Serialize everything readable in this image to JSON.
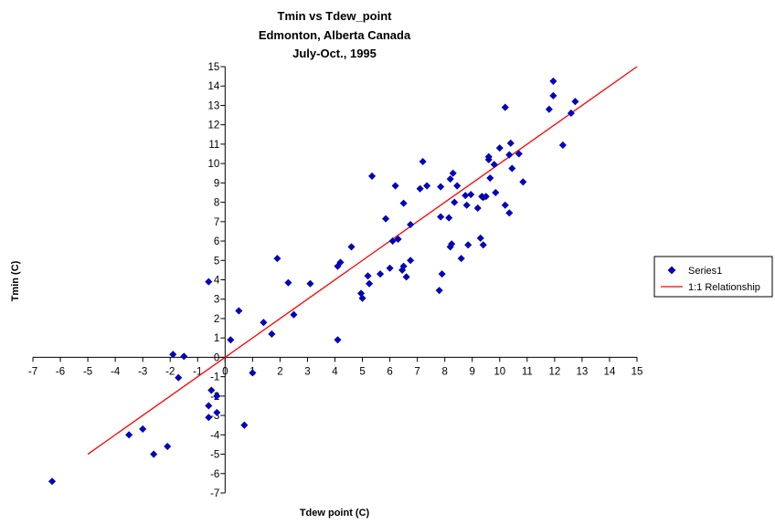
{
  "chart_data": {
    "type": "scatter",
    "title_lines": [
      "Tmin vs Tdew_point",
      "Edmonton, Alberta Canada",
      "July-Oct., 1995"
    ],
    "xlabel": "Tdew point (C)",
    "ylabel": "Tmin (C)",
    "xlim": [
      -7,
      15
    ],
    "ylim": [
      -7,
      15
    ],
    "x_ticks": [
      "-7",
      "-6",
      "-5",
      "-4",
      "-3",
      "-2",
      "-1",
      "0",
      "1",
      "2",
      "3",
      "4",
      "5",
      "6",
      "7",
      "8",
      "9",
      "10",
      "11",
      "12",
      "13",
      "14",
      "15"
    ],
    "y_ticks": [
      "-7",
      "-6",
      "-5",
      "-4",
      "-3",
      "-2",
      "-1",
      "0",
      "1",
      "2",
      "3",
      "4",
      "5",
      "6",
      "7",
      "8",
      "9",
      "10",
      "11",
      "12",
      "13",
      "14",
      "15"
    ],
    "grid": false,
    "legend_position": "right",
    "series": [
      {
        "name": "Series1",
        "marker": "diamond",
        "color": "#0000CC",
        "points": [
          [
            -6.3,
            -6.4
          ],
          [
            -3.5,
            -4.0
          ],
          [
            -3.0,
            -3.7
          ],
          [
            -2.6,
            -5.0
          ],
          [
            -2.1,
            -4.6
          ],
          [
            -1.9,
            0.15
          ],
          [
            -1.7,
            -1.05
          ],
          [
            -1.5,
            0.05
          ],
          [
            -0.6,
            3.9
          ],
          [
            -0.5,
            -1.7
          ],
          [
            -0.3,
            -2.0
          ],
          [
            -0.6,
            -2.5
          ],
          [
            -0.6,
            -3.1
          ],
          [
            -0.3,
            -2.85
          ],
          [
            0.2,
            0.9
          ],
          [
            0.5,
            2.4
          ],
          [
            0.7,
            -3.5
          ],
          [
            1.0,
            -0.8
          ],
          [
            1.4,
            1.8
          ],
          [
            1.7,
            1.2
          ],
          [
            1.9,
            5.1
          ],
          [
            2.3,
            3.85
          ],
          [
            2.5,
            2.2
          ],
          [
            3.1,
            3.8
          ],
          [
            4.1,
            0.9
          ],
          [
            4.1,
            4.7
          ],
          [
            4.2,
            4.9
          ],
          [
            4.6,
            5.7
          ],
          [
            4.95,
            3.3
          ],
          [
            5.0,
            3.05
          ],
          [
            5.2,
            4.2
          ],
          [
            5.25,
            3.8
          ],
          [
            5.35,
            9.35
          ],
          [
            5.65,
            4.3
          ],
          [
            5.85,
            7.15
          ],
          [
            6.0,
            4.6
          ],
          [
            6.1,
            6.0
          ],
          [
            6.2,
            8.85
          ],
          [
            6.3,
            6.1
          ],
          [
            6.45,
            4.5
          ],
          [
            6.5,
            7.95
          ],
          [
            6.5,
            4.7
          ],
          [
            6.6,
            4.15
          ],
          [
            6.75,
            6.85
          ],
          [
            6.75,
            5.0
          ],
          [
            7.1,
            8.7
          ],
          [
            7.2,
            10.1
          ],
          [
            7.35,
            8.85
          ],
          [
            7.8,
            3.45
          ],
          [
            7.85,
            7.25
          ],
          [
            7.85,
            8.8
          ],
          [
            7.9,
            4.3
          ],
          [
            8.15,
            7.2
          ],
          [
            8.2,
            9.2
          ],
          [
            8.2,
            5.7
          ],
          [
            8.25,
            5.85
          ],
          [
            8.3,
            9.5
          ],
          [
            8.35,
            8.0
          ],
          [
            8.45,
            8.85
          ],
          [
            8.6,
            5.1
          ],
          [
            8.75,
            8.35
          ],
          [
            8.8,
            7.85
          ],
          [
            8.85,
            5.8
          ],
          [
            8.95,
            8.4
          ],
          [
            9.2,
            7.7
          ],
          [
            9.3,
            6.15
          ],
          [
            9.35,
            8.3
          ],
          [
            9.4,
            8.25
          ],
          [
            9.4,
            5.8
          ],
          [
            9.5,
            8.3
          ],
          [
            9.6,
            10.2
          ],
          [
            9.6,
            10.35
          ],
          [
            9.65,
            9.25
          ],
          [
            9.8,
            9.95
          ],
          [
            9.85,
            8.5
          ],
          [
            10.0,
            10.8
          ],
          [
            10.2,
            7.85
          ],
          [
            10.2,
            12.9
          ],
          [
            10.35,
            10.45
          ],
          [
            10.35,
            7.45
          ],
          [
            10.4,
            11.05
          ],
          [
            10.45,
            9.75
          ],
          [
            10.7,
            10.5
          ],
          [
            10.85,
            9.05
          ],
          [
            11.8,
            12.8
          ],
          [
            11.95,
            13.5
          ],
          [
            11.95,
            14.25
          ],
          [
            12.3,
            10.95
          ],
          [
            12.6,
            12.6
          ],
          [
            12.75,
            13.2
          ]
        ]
      },
      {
        "name": "1:1 Relationship",
        "marker": "line",
        "color": "#FF0000",
        "points": [
          [
            -5,
            -5
          ],
          [
            15,
            15
          ]
        ]
      }
    ]
  }
}
